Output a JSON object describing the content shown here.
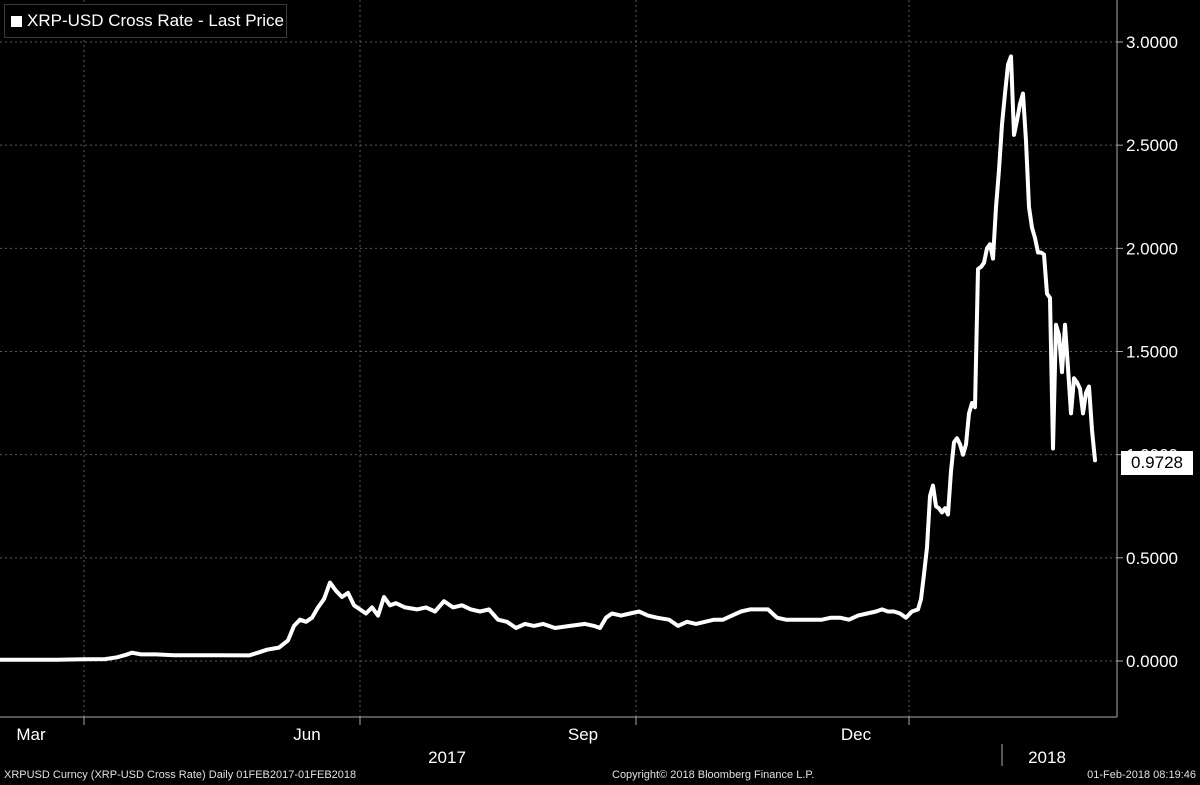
{
  "chart_data": {
    "type": "line",
    "title": "XRP-USD Cross Rate - Last Price",
    "series": [
      {
        "name": "XRP-USD Cross Rate - Last Price",
        "color": "#ffffff",
        "points": [
          [
            "2017-02-01",
            0.006
          ],
          [
            "2017-02-20",
            0.006
          ],
          [
            "2017-03-01",
            0.008
          ],
          [
            "2017-03-08",
            0.009
          ],
          [
            "2017-03-12",
            0.018
          ],
          [
            "2017-03-15",
            0.03
          ],
          [
            "2017-03-17",
            0.04
          ],
          [
            "2017-03-20",
            0.032
          ],
          [
            "2017-03-25",
            0.032
          ],
          [
            "2017-03-31",
            0.028
          ],
          [
            "2017-04-15",
            0.028
          ],
          [
            "2017-04-25",
            0.027
          ],
          [
            "2017-04-28",
            0.04
          ],
          [
            "2017-05-01",
            0.055
          ],
          [
            "2017-05-03",
            0.06
          ],
          [
            "2017-05-05",
            0.065
          ],
          [
            "2017-05-08",
            0.1
          ],
          [
            "2017-05-10",
            0.17
          ],
          [
            "2017-05-12",
            0.2
          ],
          [
            "2017-05-14",
            0.19
          ],
          [
            "2017-05-16",
            0.21
          ],
          [
            "2017-05-18",
            0.26
          ],
          [
            "2017-05-20",
            0.3
          ],
          [
            "2017-05-22",
            0.38
          ],
          [
            "2017-05-24",
            0.34
          ],
          [
            "2017-05-26",
            0.31
          ],
          [
            "2017-05-28",
            0.33
          ],
          [
            "2017-05-30",
            0.27
          ],
          [
            "2017-06-01",
            0.25
          ],
          [
            "2017-06-03",
            0.23
          ],
          [
            "2017-06-05",
            0.26
          ],
          [
            "2017-06-07",
            0.22
          ],
          [
            "2017-06-09",
            0.31
          ],
          [
            "2017-06-11",
            0.27
          ],
          [
            "2017-06-13",
            0.28
          ],
          [
            "2017-06-16",
            0.26
          ],
          [
            "2017-06-20",
            0.25
          ],
          [
            "2017-06-23",
            0.26
          ],
          [
            "2017-06-26",
            0.24
          ],
          [
            "2017-06-29",
            0.29
          ],
          [
            "2017-07-02",
            0.26
          ],
          [
            "2017-07-05",
            0.27
          ],
          [
            "2017-07-08",
            0.25
          ],
          [
            "2017-07-11",
            0.24
          ],
          [
            "2017-07-14",
            0.25
          ],
          [
            "2017-07-17",
            0.2
          ],
          [
            "2017-07-20",
            0.19
          ],
          [
            "2017-07-23",
            0.16
          ],
          [
            "2017-07-26",
            0.18
          ],
          [
            "2017-07-29",
            0.17
          ],
          [
            "2017-08-01",
            0.18
          ],
          [
            "2017-08-05",
            0.16
          ],
          [
            "2017-08-10",
            0.17
          ],
          [
            "2017-08-15",
            0.18
          ],
          [
            "2017-08-18",
            0.17
          ],
          [
            "2017-08-20",
            0.16
          ],
          [
            "2017-08-22",
            0.21
          ],
          [
            "2017-08-24",
            0.23
          ],
          [
            "2017-08-27",
            0.22
          ],
          [
            "2017-08-30",
            0.23
          ],
          [
            "2017-09-02",
            0.24
          ],
          [
            "2017-09-05",
            0.22
          ],
          [
            "2017-09-08",
            0.21
          ],
          [
            "2017-09-12",
            0.2
          ],
          [
            "2017-09-15",
            0.17
          ],
          [
            "2017-09-18",
            0.19
          ],
          [
            "2017-09-21",
            0.18
          ],
          [
            "2017-09-24",
            0.19
          ],
          [
            "2017-09-27",
            0.2
          ],
          [
            "2017-09-30",
            0.2
          ],
          [
            "2017-10-03",
            0.22
          ],
          [
            "2017-10-06",
            0.24
          ],
          [
            "2017-10-09",
            0.25
          ],
          [
            "2017-10-12",
            0.25
          ],
          [
            "2017-10-15",
            0.25
          ],
          [
            "2017-10-18",
            0.21
          ],
          [
            "2017-10-21",
            0.2
          ],
          [
            "2017-10-24",
            0.2
          ],
          [
            "2017-10-27",
            0.2
          ],
          [
            "2017-10-30",
            0.2
          ],
          [
            "2017-11-02",
            0.2
          ],
          [
            "2017-11-05",
            0.21
          ],
          [
            "2017-11-08",
            0.21
          ],
          [
            "2017-11-11",
            0.2
          ],
          [
            "2017-11-14",
            0.22
          ],
          [
            "2017-11-17",
            0.23
          ],
          [
            "2017-11-20",
            0.24
          ],
          [
            "2017-11-22",
            0.25
          ],
          [
            "2017-11-24",
            0.24
          ],
          [
            "2017-11-26",
            0.24
          ],
          [
            "2017-11-28",
            0.23
          ],
          [
            "2017-11-30",
            0.21
          ],
          [
            "2017-12-02",
            0.24
          ],
          [
            "2017-12-04",
            0.25
          ],
          [
            "2017-12-05",
            0.3
          ],
          [
            "2017-12-06",
            0.42
          ],
          [
            "2017-12-07",
            0.55
          ],
          [
            "2017-12-08",
            0.8
          ],
          [
            "2017-12-09",
            0.85
          ],
          [
            "2017-12-10",
            0.75
          ],
          [
            "2017-12-11",
            0.74
          ],
          [
            "2017-12-12",
            0.72
          ],
          [
            "2017-12-13",
            0.74
          ],
          [
            "2017-12-14",
            0.71
          ],
          [
            "2017-12-15",
            0.92
          ],
          [
            "2017-12-16",
            1.06
          ],
          [
            "2017-12-17",
            1.08
          ],
          [
            "2017-12-18",
            1.05
          ],
          [
            "2017-12-19",
            1.0
          ],
          [
            "2017-12-20",
            1.05
          ],
          [
            "2017-12-21",
            1.2
          ],
          [
            "2017-12-22",
            1.25
          ],
          [
            "2017-12-23",
            1.23
          ],
          [
            "2017-12-24",
            1.9
          ],
          [
            "2017-12-25",
            1.91
          ],
          [
            "2017-12-26",
            1.93
          ],
          [
            "2017-12-27",
            2.0
          ],
          [
            "2017-12-28",
            2.02
          ],
          [
            "2017-12-29",
            1.95
          ],
          [
            "2017-12-30",
            2.2
          ],
          [
            "2017-12-31",
            2.38
          ],
          [
            "2018-01-01",
            2.6
          ],
          [
            "2018-01-02",
            2.75
          ],
          [
            "2018-01-03",
            2.89
          ],
          [
            "2018-01-04",
            2.93
          ],
          [
            "2018-01-05",
            2.55
          ],
          [
            "2018-01-06",
            2.62
          ],
          [
            "2018-01-07",
            2.7
          ],
          [
            "2018-01-08",
            2.75
          ],
          [
            "2018-01-09",
            2.52
          ],
          [
            "2018-01-10",
            2.2
          ],
          [
            "2018-01-11",
            2.1
          ],
          [
            "2018-01-12",
            2.05
          ],
          [
            "2018-01-13",
            1.98
          ],
          [
            "2018-01-14",
            1.98
          ],
          [
            "2018-01-15",
            1.97
          ],
          [
            "2018-01-16",
            1.78
          ],
          [
            "2018-01-17",
            1.76
          ],
          [
            "2018-01-18",
            1.03
          ],
          [
            "2018-01-19",
            1.63
          ],
          [
            "2018-01-20",
            1.58
          ],
          [
            "2018-01-21",
            1.4
          ],
          [
            "2018-01-22",
            1.63
          ],
          [
            "2018-01-23",
            1.42
          ],
          [
            "2018-01-24",
            1.2
          ],
          [
            "2018-01-25",
            1.37
          ],
          [
            "2018-01-26",
            1.35
          ],
          [
            "2018-01-27",
            1.32
          ],
          [
            "2018-01-28",
            1.2
          ],
          [
            "2018-01-29",
            1.3
          ],
          [
            "2018-01-30",
            1.33
          ],
          [
            "2018-01-31",
            1.12
          ],
          [
            "2018-02-01",
            0.9728
          ]
        ]
      }
    ],
    "x_range": [
      "2017-02-01",
      "2018-02-01"
    ],
    "xticks": [
      {
        "label": "Mar",
        "date": "2017-03-01"
      },
      {
        "label": "Jun",
        "date": "2017-06-01"
      },
      {
        "label": "Sep",
        "date": "2017-09-01"
      },
      {
        "label": "Dec",
        "date": "2017-12-01"
      }
    ],
    "year_labels": [
      {
        "label": "2017",
        "date": "2017-06-30"
      },
      {
        "label": "2018",
        "date": "2018-01-16"
      }
    ],
    "year_divider": "2018-01-01",
    "ylim": [
      -0.27,
      3.2
    ],
    "yticks": [
      0.0,
      0.5,
      1.0,
      1.5,
      2.0,
      2.5,
      3.0
    ],
    "ytick_labels": [
      "0.0000",
      "0.5000",
      "1.0000",
      "1.5000",
      "2.0000",
      "2.5000",
      "3.0000"
    ],
    "last_price": "0.9728",
    "grid": true,
    "legend_position": "top-left",
    "background_color": "#000000",
    "line_color": "#ffffff"
  },
  "legend": {
    "label": "XRP-USD Cross Rate - Last Price"
  },
  "price_tag": {
    "value": "0.9728"
  },
  "footer": {
    "left": "XRPUSD Curncy (XRP-USD Cross Rate)  Daily 01FEB2017-01FEB2018",
    "center": "Copyright© 2018 Bloomberg Finance L.P.",
    "right": "01-Feb-2018 08:19:46"
  }
}
